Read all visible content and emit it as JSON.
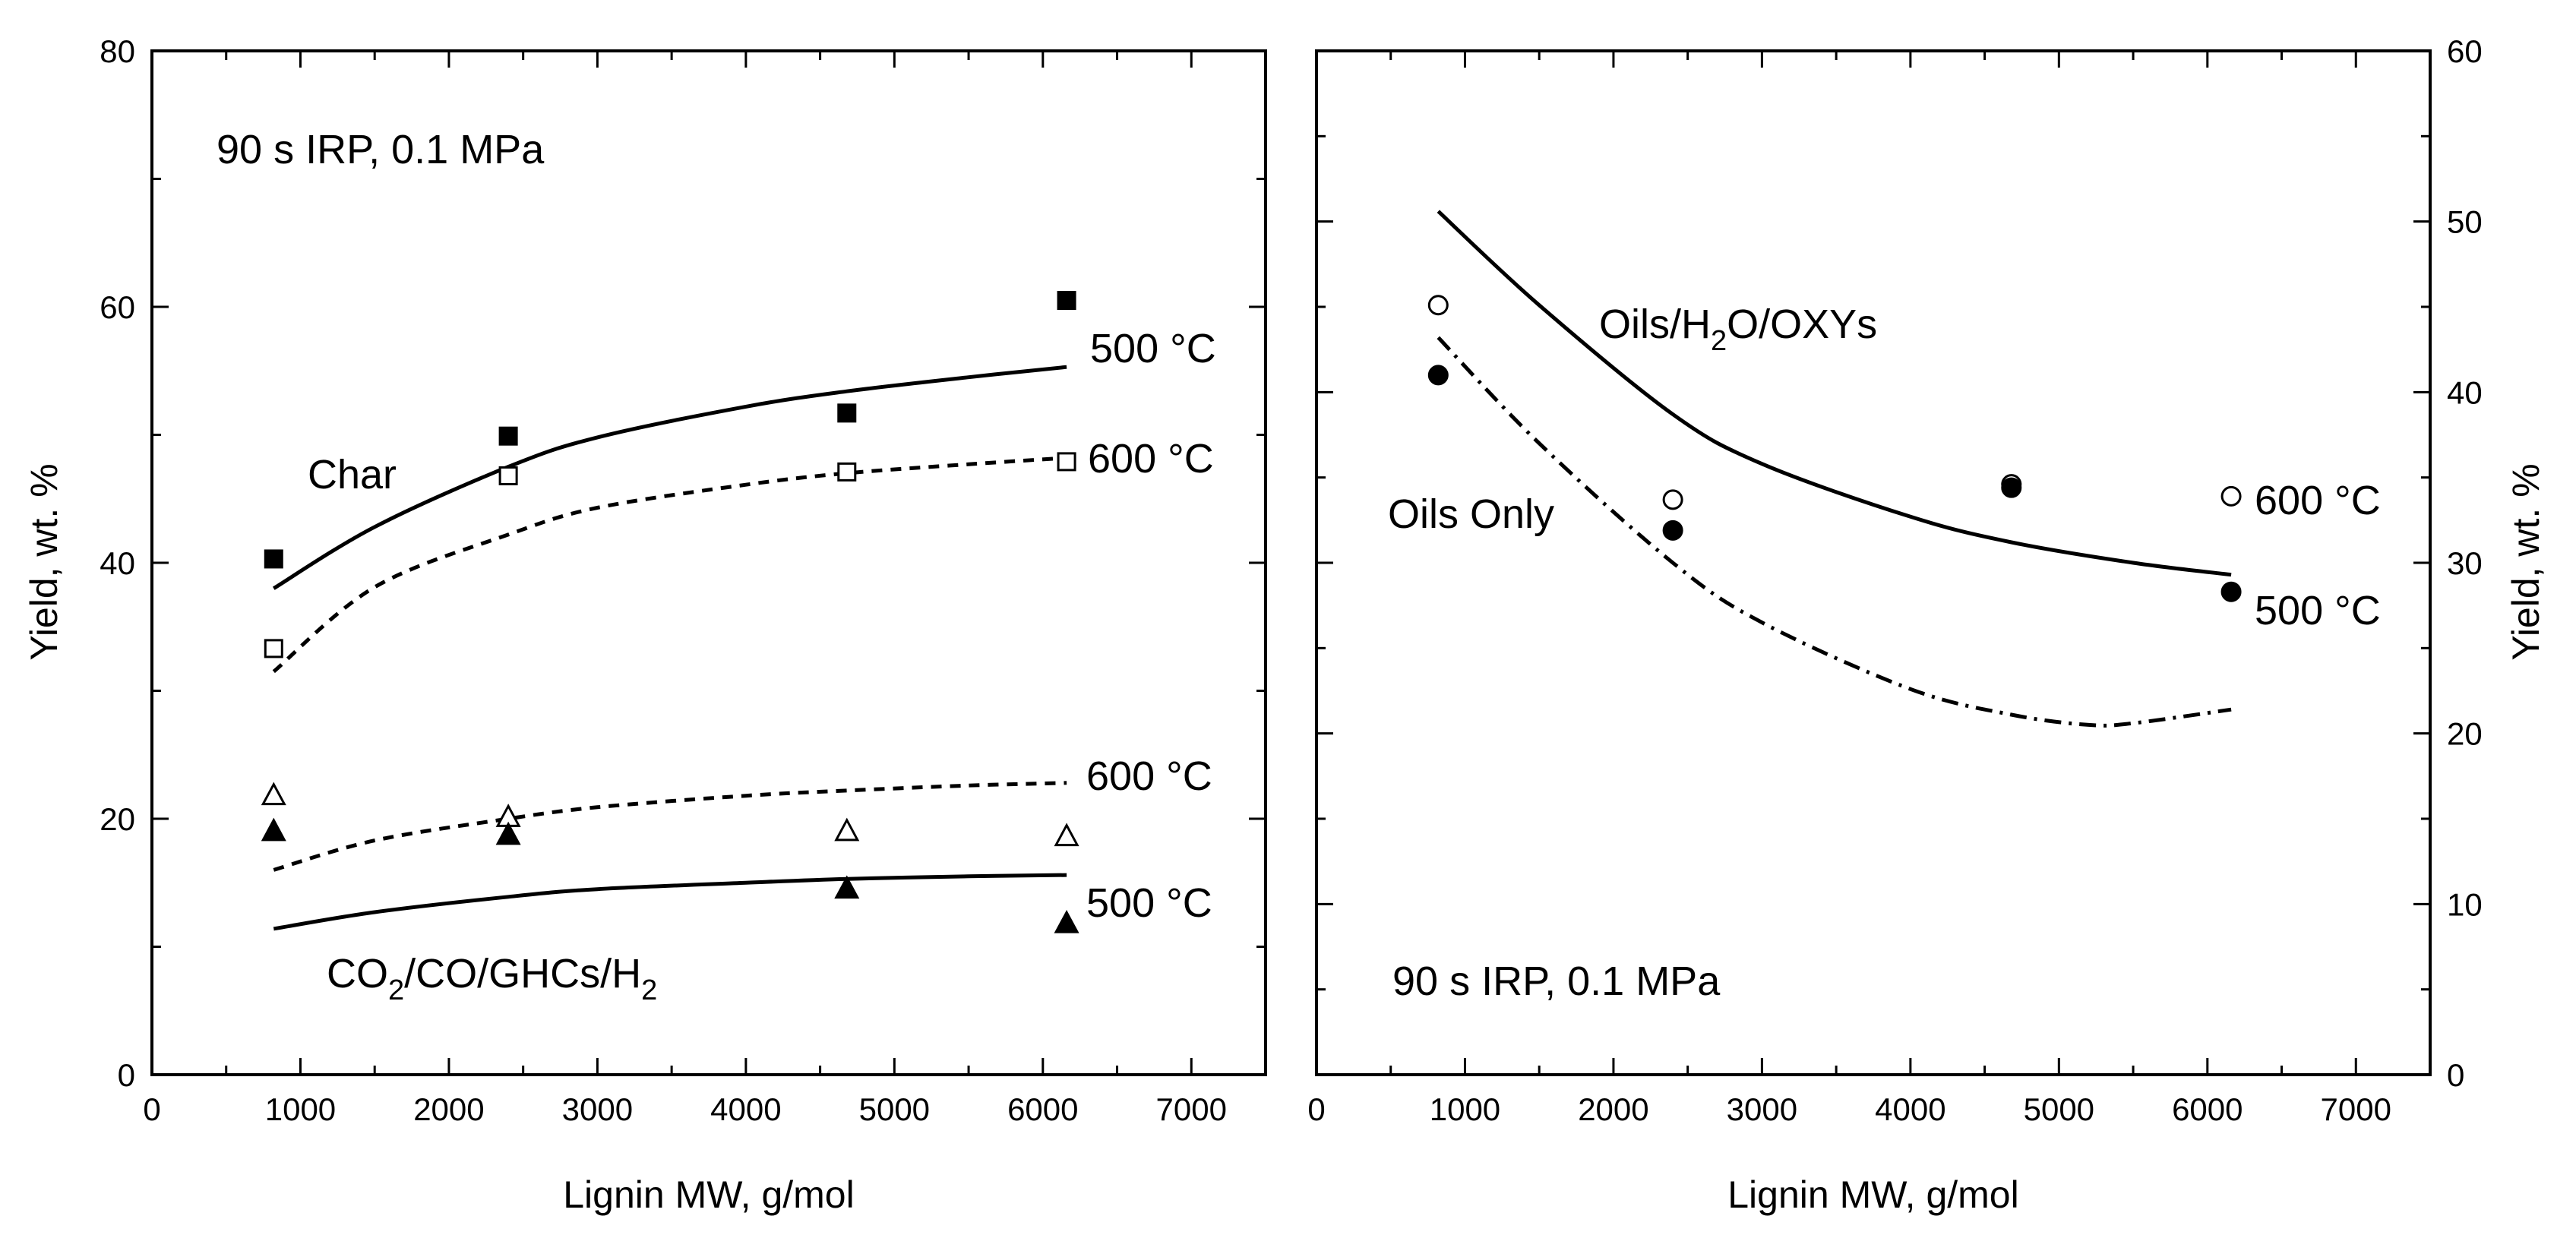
{
  "chart_data": [
    {
      "type": "scatter",
      "panel": "left",
      "xlabel": "Lignin MW, g/mol",
      "ylabel": "Yield, wt. %",
      "ylabel_side": "left",
      "xlim": [
        0,
        7500
      ],
      "ylim": [
        0,
        80
      ],
      "xticks": [
        0,
        1000,
        2000,
        3000,
        4000,
        5000,
        6000,
        7000
      ],
      "xtick_labels": [
        "0",
        "1000",
        "2000",
        "3000",
        "4000",
        "5000",
        "6000",
        "7000"
      ],
      "yticks": [
        0,
        20,
        40,
        60,
        80
      ],
      "ytick_labels": [
        "0",
        "20",
        "40",
        "60",
        "80"
      ],
      "grid": false,
      "series": [
        {
          "name": "Char 500 °C",
          "marker": "square-filled",
          "x": [
            820,
            2400,
            4680,
            6160
          ],
          "y": [
            40.3,
            49.9,
            51.7,
            60.5
          ]
        },
        {
          "name": "Char 600 °C",
          "marker": "square-open",
          "x": [
            820,
            2400,
            4680,
            6160
          ],
          "y": [
            33.3,
            46.8,
            47.1,
            47.9
          ]
        },
        {
          "name": "CO2/CO/GHCs/H2 600 °C",
          "marker": "triangle-open",
          "x": [
            820,
            2400,
            4680,
            6160
          ],
          "y": [
            21.8,
            20.1,
            19.0,
            18.6
          ]
        },
        {
          "name": "CO2/CO/GHCs/H2 500 °C",
          "marker": "triangle-filled",
          "x": [
            820,
            2400,
            4680,
            6160
          ],
          "y": [
            19.0,
            18.7,
            14.5,
            11.8
          ]
        }
      ],
      "fits": [
        {
          "name": "Char 500 °C fit",
          "style": "solid",
          "x": [
            820,
            1500,
            2400,
            3000,
            4000,
            4680,
            5500,
            6160
          ],
          "y": [
            38.0,
            42.8,
            47.5,
            49.8,
            52.2,
            53.4,
            54.5,
            55.3
          ]
        },
        {
          "name": "Char 600 °C fit",
          "style": "dashed",
          "x": [
            820,
            1500,
            2400,
            3000,
            4000,
            4680,
            5500,
            6160
          ],
          "y": [
            31.5,
            38.1,
            42.2,
            44.3,
            46.1,
            47.0,
            47.7,
            48.2
          ]
        },
        {
          "name": "Gas 600 °C fit",
          "style": "dashed",
          "x": [
            820,
            1500,
            2400,
            3000,
            4000,
            4680,
            5500,
            6160
          ],
          "y": [
            16.0,
            18.3,
            20.0,
            20.9,
            21.8,
            22.2,
            22.6,
            22.8
          ]
        },
        {
          "name": "Gas 500 °C fit",
          "style": "solid",
          "x": [
            820,
            1500,
            2400,
            3000,
            4000,
            4680,
            5500,
            6160
          ],
          "y": [
            11.4,
            12.7,
            13.9,
            14.5,
            15.0,
            15.3,
            15.5,
            15.6
          ]
        }
      ],
      "annotations": {
        "condition": "90 s IRP, 0.1 MPa",
        "char": "Char",
        "char_500": "500 °C",
        "char_600": "600 °C",
        "gas_600": "600 °C",
        "gas_500": "500 °C",
        "gas_label": {
          "p1": "CO",
          "s1": "2",
          "p2": "/CO/GHCs/H",
          "s2": "2"
        }
      }
    },
    {
      "type": "scatter",
      "panel": "right",
      "xlabel": "Lignin MW, g/mol",
      "ylabel": "Yield, wt. %",
      "ylabel_side": "right",
      "xlim": [
        0,
        7500
      ],
      "ylim": [
        0,
        60
      ],
      "xticks": [
        0,
        1000,
        2000,
        3000,
        4000,
        5000,
        6000,
        7000
      ],
      "xtick_labels": [
        "0",
        "1000",
        "2000",
        "3000",
        "4000",
        "5000",
        "6000",
        "7000"
      ],
      "yticks": [
        0,
        10,
        20,
        30,
        40,
        50,
        60
      ],
      "ytick_labels": [
        "0",
        "10",
        "20",
        "30",
        "40",
        "50",
        "60"
      ],
      "grid": false,
      "series": [
        {
          "name": "Oils/H2O/OXYs 600 °C",
          "marker": "circle-open",
          "x": [
            820,
            2400,
            4680,
            6160
          ],
          "y": [
            45.1,
            33.7,
            34.6,
            33.9
          ]
        },
        {
          "name": "Oils/H2O/OXYs 500 °C",
          "marker": "circle-filled",
          "x": [
            820,
            2400,
            4680,
            6160
          ],
          "y": [
            41.0,
            31.9,
            34.4,
            28.3
          ]
        }
      ],
      "fits": [
        {
          "name": "Oils/H2O/OXYs fit",
          "style": "solid",
          "x": [
            820,
            1500,
            2400,
            3000,
            4000,
            4680,
            5500,
            6160
          ],
          "y": [
            50.6,
            45.1,
            38.7,
            35.8,
            32.7,
            31.2,
            30.0,
            29.3
          ]
        },
        {
          "name": "Oils Only fit",
          "style": "dashdot",
          "x": [
            820,
            1500,
            2400,
            3000,
            4000,
            4680,
            5200,
            5500,
            6160
          ],
          "y": [
            43.2,
            37.0,
            30.0,
            26.5,
            22.6,
            21.1,
            20.5,
            20.6,
            21.4
          ]
        }
      ],
      "annotations": {
        "condition": "90 s IRP, 0.1 MPa",
        "oils_oxys": {
          "p1": "Oils/H",
          "s1": "2",
          "p2": "O/OXYs"
        },
        "oils_only": "Oils Only",
        "t600": "600 °C",
        "t500": "500 °C"
      }
    }
  ]
}
